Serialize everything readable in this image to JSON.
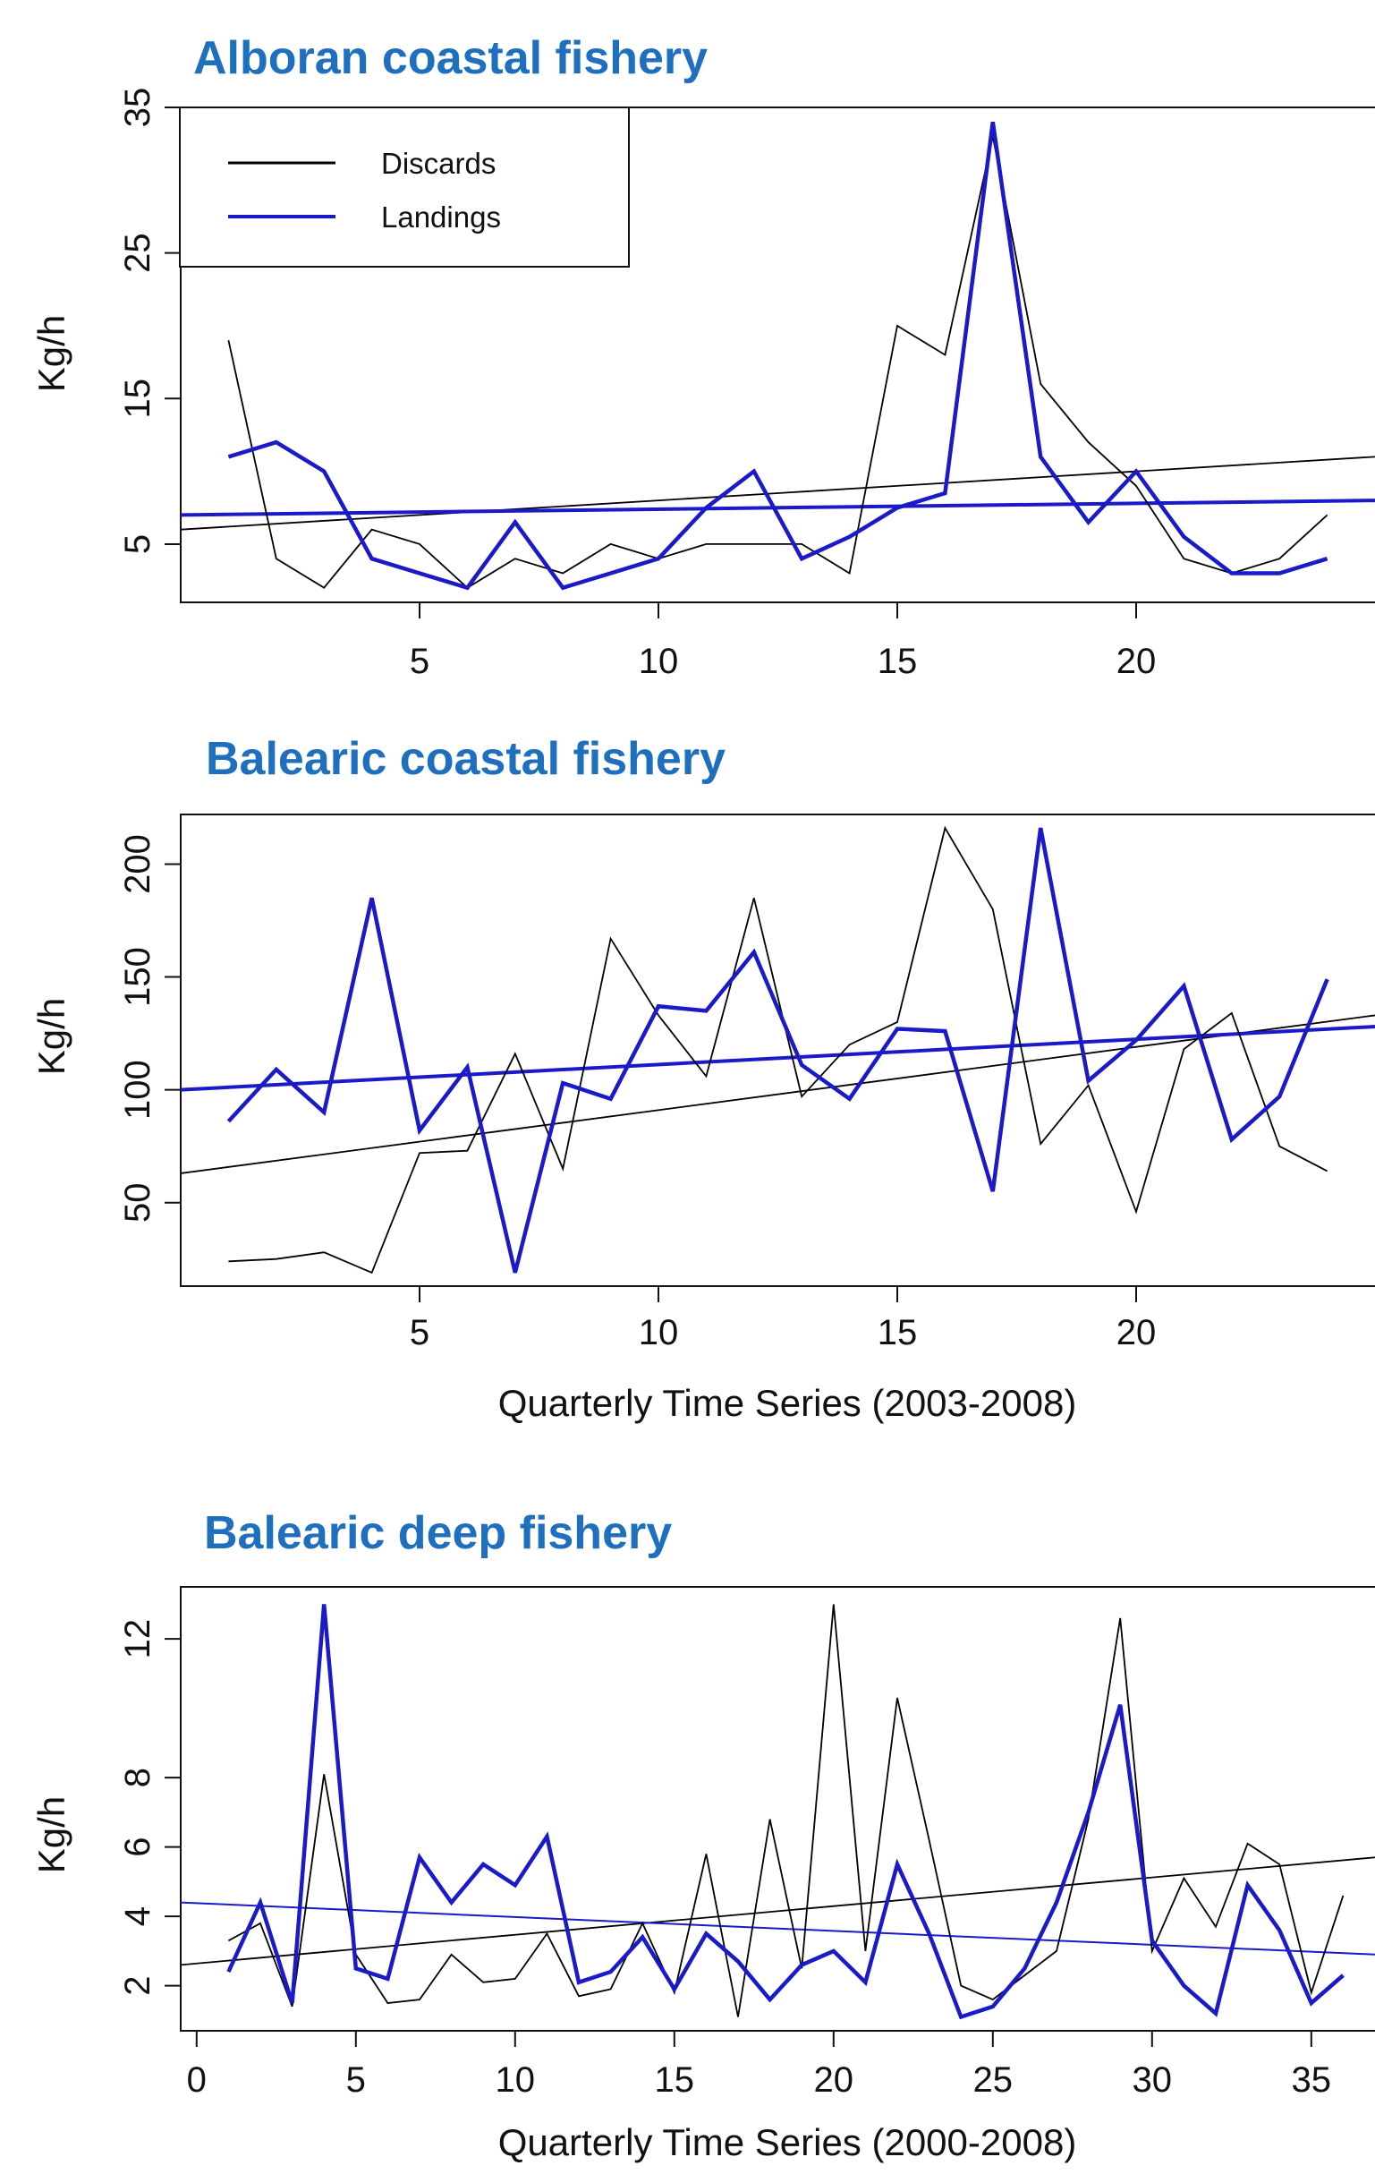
{
  "colors": {
    "discards": "#000000",
    "landings": "#1a1ac8",
    "title": "#1f6fbf"
  },
  "legend": {
    "items": [
      "Discards",
      "Landings"
    ],
    "placement": "top-left"
  },
  "chart_data": [
    {
      "type": "line",
      "title": "Alboran coastal fishery",
      "xlabel": "",
      "ylabel": "Kg/h",
      "xlim": [
        0,
        25
      ],
      "ylim": [
        1,
        35
      ],
      "xticks": [
        5,
        10,
        15,
        20
      ],
      "yticks": [
        5,
        15,
        25,
        35
      ],
      "x": [
        1,
        2,
        3,
        4,
        5,
        6,
        7,
        8,
        9,
        10,
        11,
        12,
        13,
        14,
        15,
        16,
        17,
        18,
        19,
        20,
        21,
        22,
        23,
        24
      ],
      "series": [
        {
          "name": "Discards",
          "values": [
            19,
            4,
            2,
            6,
            5,
            2,
            4,
            3,
            5,
            4,
            5,
            5,
            5,
            3,
            20,
            18,
            33,
            16,
            12,
            9,
            4,
            3,
            4,
            7
          ]
        },
        {
          "name": "Landings",
          "values": [
            11,
            12,
            10,
            4,
            3,
            2,
            6.5,
            2,
            3,
            4,
            7.5,
            10,
            4,
            5.5,
            7.5,
            8.5,
            34,
            11,
            6.5,
            10,
            5.5,
            3,
            3,
            4
          ]
        }
      ],
      "trends": [
        {
          "name": "Discards",
          "from": [
            0,
            6
          ],
          "to": [
            25,
            11
          ]
        },
        {
          "name": "Landings",
          "from": [
            0,
            7
          ],
          "to": [
            25,
            8
          ]
        }
      ]
    },
    {
      "type": "line",
      "title": "Balearic coastal fishery",
      "xlabel": "Quarterly Time Series (2003-2008)",
      "ylabel": "Kg/h",
      "xlim": [
        0,
        25
      ],
      "ylim": [
        13,
        222
      ],
      "xticks": [
        5,
        10,
        15,
        20
      ],
      "yticks": [
        50,
        100,
        150,
        200
      ],
      "x": [
        1,
        2,
        3,
        4,
        5,
        6,
        7,
        8,
        9,
        10,
        11,
        12,
        13,
        14,
        15,
        16,
        17,
        18,
        19,
        20,
        21,
        22,
        23,
        24
      ],
      "series": [
        {
          "name": "Discards",
          "values": [
            24,
            25,
            28,
            19,
            72,
            73,
            116,
            65,
            167,
            133,
            106,
            185,
            97,
            120,
            130,
            216,
            180,
            76,
            102,
            46,
            118,
            134,
            75,
            64
          ]
        },
        {
          "name": "Landings",
          "values": [
            86,
            109,
            90,
            185,
            82,
            110,
            19,
            103,
            96,
            137,
            135,
            161,
            111,
            96,
            127,
            126,
            55,
            216,
            104,
            122,
            146,
            78,
            97,
            149
          ]
        }
      ],
      "trends": [
        {
          "name": "Discards",
          "from": [
            0,
            63
          ],
          "to": [
            25,
            133
          ]
        },
        {
          "name": "Landings",
          "from": [
            0,
            100
          ],
          "to": [
            25,
            128
          ]
        }
      ]
    },
    {
      "type": "line",
      "title": "Balearic deep fishery",
      "xlabel": "Quarterly Time Series (2000-2008)",
      "ylabel": "Kg/h",
      "xlim": [
        -0.5,
        37
      ],
      "ylim": [
        0.7,
        13.5
      ],
      "xticks": [
        0,
        5,
        10,
        15,
        20,
        25,
        30,
        35
      ],
      "yticks": [
        2,
        4,
        6,
        8,
        12
      ],
      "x": [
        1,
        2,
        3,
        4,
        5,
        6,
        7,
        8,
        9,
        10,
        11,
        12,
        13,
        14,
        15,
        16,
        17,
        18,
        19,
        20,
        21,
        22,
        23,
        24,
        25,
        26,
        27,
        28,
        29,
        30,
        31,
        32,
        33,
        34,
        35,
        36
      ],
      "series": [
        {
          "name": "Discards",
          "values": [
            3.3,
            3.8,
            1.4,
            8.1,
            2.9,
            1.5,
            1.6,
            2.9,
            2.1,
            2.2,
            3.5,
            1.7,
            1.9,
            3.8,
            1.8,
            5.8,
            1.1,
            6.8,
            2.5,
            13.0,
            3.0,
            10.3,
            6.2,
            2.0,
            1.6,
            2.3,
            3.0,
            6.8,
            12.6,
            3.0,
            5.1,
            3.7,
            6.1,
            5.5,
            1.8,
            4.6
          ]
        },
        {
          "name": "Landings",
          "values": [
            2.4,
            4.4,
            1.5,
            13.0,
            2.5,
            2.2,
            5.7,
            4.4,
            5.5,
            4.9,
            6.3,
            2.1,
            2.4,
            3.4,
            1.9,
            3.5,
            2.7,
            1.6,
            2.6,
            3.0,
            2.1,
            5.5,
            3.5,
            1.1,
            1.4,
            2.5,
            4.4,
            7.0,
            10.1,
            3.3,
            2.0,
            1.2,
            4.9,
            3.6,
            1.5,
            2.3
          ]
        }
      ],
      "trends": [
        {
          "name": "Discards",
          "from": [
            -0.5,
            2.6
          ],
          "to": [
            37,
            5.7
          ]
        },
        {
          "name": "Landings",
          "from": [
            -0.5,
            4.4
          ],
          "to": [
            37,
            2.9
          ]
        }
      ]
    }
  ]
}
